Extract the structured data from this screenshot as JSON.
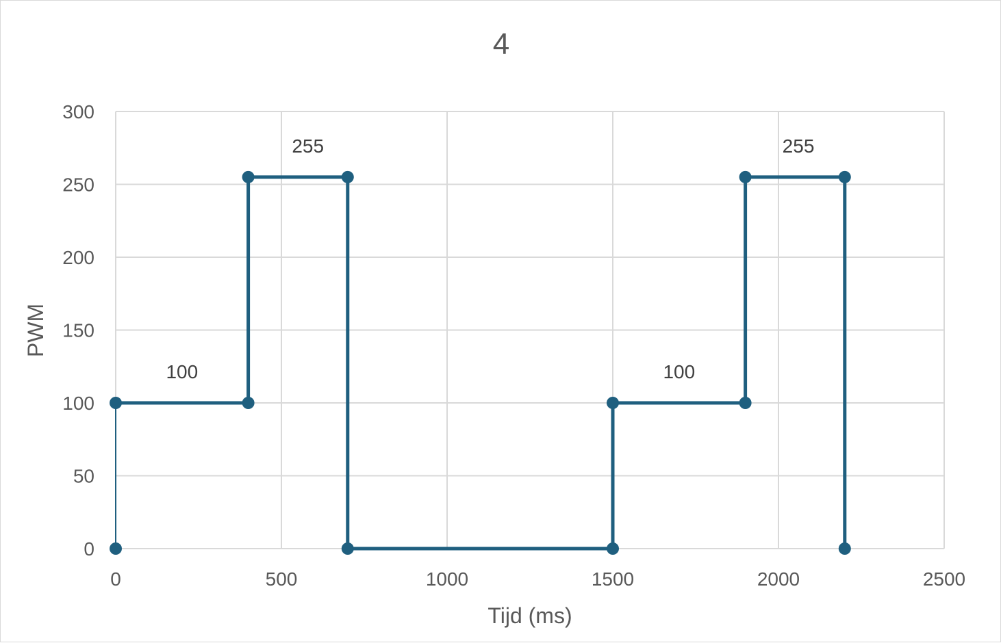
{
  "chart_data": {
    "type": "line",
    "title": "4",
    "xlabel": "Tijd (ms)",
    "ylabel": "PWM",
    "xlim": [
      0,
      2500
    ],
    "ylim": [
      0,
      300
    ],
    "xticks": [
      "0",
      "500",
      "1000",
      "1500",
      "2000",
      "2500"
    ],
    "yticks": [
      "0",
      "50",
      "100",
      "150",
      "200",
      "250",
      "300"
    ],
    "grid": true,
    "legend": "none",
    "series": [
      {
        "color": "#1f5f7f",
        "points": [
          {
            "x": 0,
            "y": 0
          },
          {
            "x": 0,
            "y": 100
          },
          {
            "x": 400,
            "y": 100
          },
          {
            "x": 400,
            "y": 255
          },
          {
            "x": 700,
            "y": 255
          },
          {
            "x": 700,
            "y": 0
          },
          {
            "x": 1500,
            "y": 0
          },
          {
            "x": 1500,
            "y": 100
          },
          {
            "x": 1900,
            "y": 100
          },
          {
            "x": 1900,
            "y": 255
          },
          {
            "x": 2200,
            "y": 255
          },
          {
            "x": 2200,
            "y": 0
          }
        ]
      }
    ],
    "data_labels": [
      {
        "text": "100",
        "x": 200,
        "y": 100
      },
      {
        "text": "255",
        "x": 580,
        "y": 255
      },
      {
        "text": "100",
        "x": 1700,
        "y": 100
      },
      {
        "text": "255",
        "x": 2060,
        "y": 255
      }
    ]
  }
}
